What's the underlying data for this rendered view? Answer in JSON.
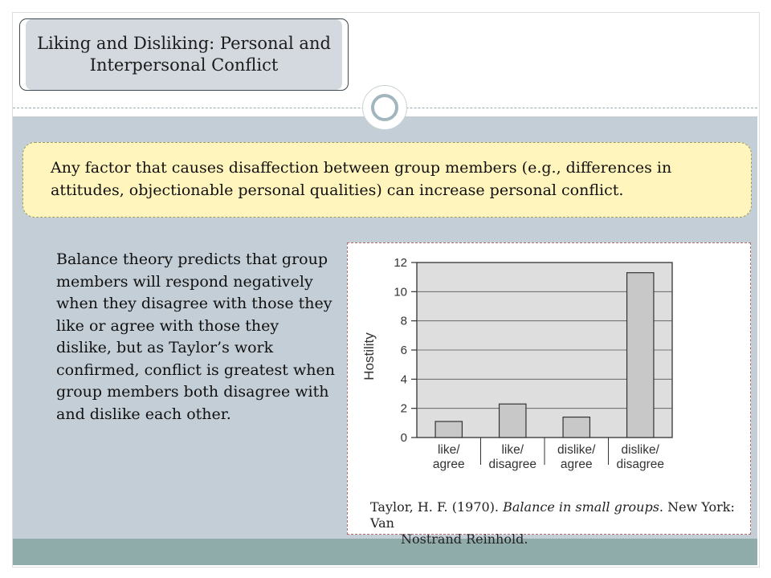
{
  "slide": {
    "title": "Liking and Disliking:  Personal and Interpersonal Conflict",
    "callout": "Any factor that causes disaffection between group members (e.g., differences in attitudes, objectionable personal qualities) can increase personal conflict.",
    "body_text": "Balance theory predicts that group members will respond negatively when they disagree with those they like or agree with those they dislike, but as Taylor’s work confirmed, conflict is greatest when group members both disagree with and dislike each other.",
    "caption": {
      "author": "Taylor, H. F. (1970).",
      "work": "Balance in small groups",
      "publisher_a": ". New York: Van",
      "publisher_b": "Nostrand Reinhold."
    }
  },
  "colors": {
    "bar_fill": "#c8c8c8",
    "plot_bg": "#dedede",
    "callout_bg": "#fff5bd",
    "panel_bg": "#c4ced6",
    "footer_band": "#8facab"
  },
  "chart_data": {
    "type": "bar",
    "categories": [
      "like/\nagree",
      "like/\ndisagree",
      "dislike/\nagree",
      "dislike/\ndisagree"
    ],
    "values": [
      1.1,
      2.3,
      1.4,
      11.3
    ],
    "ylabel": "Hostility",
    "xlabel": "",
    "ylim": [
      0,
      12
    ],
    "yticks": [
      0,
      2,
      4,
      6,
      8,
      10,
      12
    ],
    "grid": true
  }
}
